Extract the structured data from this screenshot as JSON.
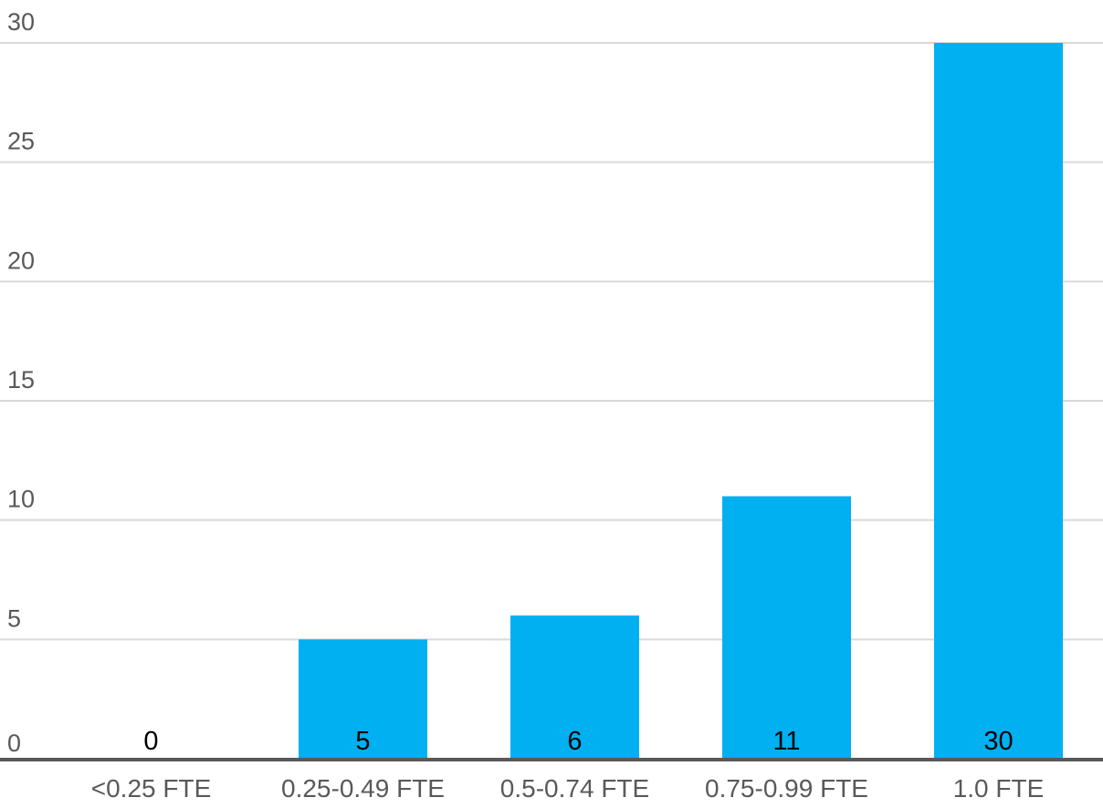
{
  "chart_data": {
    "type": "bar",
    "title": "",
    "xlabel": "",
    "ylabel": "",
    "categories": [
      "<0.25 FTE",
      "0.25-0.49 FTE",
      "0.5-0.74 FTE",
      "0.75-0.99 FTE",
      "1.0 FTE"
    ],
    "values": [
      0,
      5,
      6,
      11,
      30
    ],
    "data_labels": [
      "0",
      "5",
      "6",
      "11",
      "30"
    ],
    "ylim": [
      0,
      30
    ],
    "yticks": [
      0,
      5,
      10,
      15,
      20,
      25,
      30
    ],
    "ytick_labels": [
      "0",
      "5",
      "10",
      "15",
      "20",
      "25",
      "30"
    ],
    "grid": true,
    "legend": "none",
    "colors": {
      "bar": "#00b0f0",
      "grid": "#d9d9d9",
      "baseline": "#595959",
      "axis_text": "#595959",
      "data_label": "#000000"
    }
  }
}
